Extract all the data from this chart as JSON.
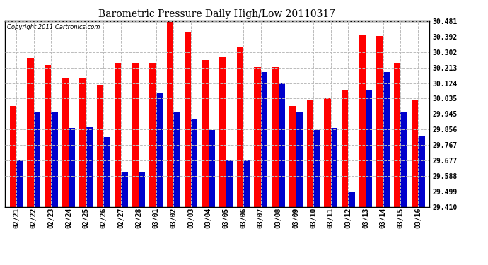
{
  "title": "Barometric Pressure Daily High/Low 20110317",
  "copyright": "Copyright 2011 Cartronics.com",
  "yticks": [
    29.41,
    29.499,
    29.588,
    29.677,
    29.767,
    29.856,
    29.945,
    30.035,
    30.124,
    30.213,
    30.302,
    30.392,
    30.481
  ],
  "ylim": [
    29.41,
    30.481
  ],
  "background_color": "#ffffff",
  "grid_color": "#bbbbbb",
  "bar_color_high": "#ff0000",
  "bar_color_low": "#0000cc",
  "dates": [
    "02/21",
    "02/22",
    "02/23",
    "02/24",
    "02/25",
    "02/26",
    "02/27",
    "02/28",
    "03/01",
    "03/02",
    "03/03",
    "03/04",
    "03/05",
    "03/06",
    "03/07",
    "03/08",
    "03/09",
    "03/10",
    "03/11",
    "03/12",
    "03/13",
    "03/14",
    "03/15",
    "03/16"
  ],
  "highs": [
    29.99,
    30.27,
    30.23,
    30.155,
    30.155,
    30.115,
    30.24,
    30.24,
    30.24,
    30.481,
    30.42,
    30.255,
    30.275,
    30.33,
    30.215,
    30.215,
    29.99,
    30.03,
    30.038,
    30.082,
    30.4,
    30.395,
    30.24,
    30.03
  ],
  "lows": [
    29.677,
    29.955,
    29.958,
    29.865,
    29.867,
    29.812,
    29.612,
    29.612,
    30.07,
    29.955,
    29.918,
    29.852,
    29.68,
    29.68,
    30.188,
    30.128,
    29.958,
    29.853,
    29.865,
    29.499,
    30.085,
    30.188,
    29.958,
    29.818
  ]
}
